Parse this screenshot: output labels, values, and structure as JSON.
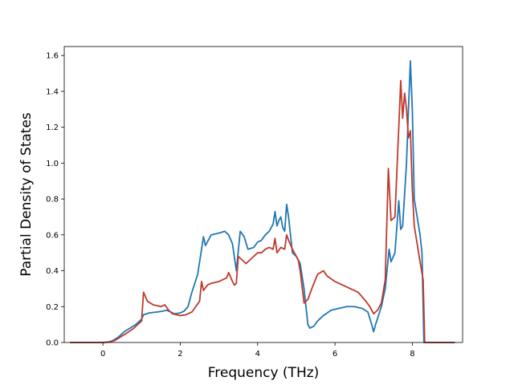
{
  "chart_data": {
    "type": "line",
    "title": "",
    "xlabel": "Frequency (THz)",
    "ylabel": "Partial Density of States",
    "xlim": [
      -1.0,
      9.3
    ],
    "ylim": [
      0.0,
      1.65
    ],
    "xticks": [
      0,
      2,
      4,
      6,
      8
    ],
    "yticks": [
      0.0,
      0.2,
      0.4,
      0.6,
      0.8,
      1.0,
      1.2,
      1.4,
      1.6
    ],
    "xtick_labels": [
      "0",
      "2",
      "4",
      "6",
      "8"
    ],
    "ytick_labels": [
      "0.0",
      "0.2",
      "0.4",
      "0.6",
      "0.8",
      "1.0",
      "1.2",
      "1.4",
      "1.6"
    ],
    "grid": false,
    "legend": "none",
    "series": [
      {
        "color": "#1f77b4",
        "points": [
          [
            -0.85,
            0.0
          ],
          [
            0.0,
            0.0
          ],
          [
            0.15,
            0.003
          ],
          [
            0.25,
            0.01
          ],
          [
            0.4,
            0.03
          ],
          [
            0.55,
            0.06
          ],
          [
            0.7,
            0.08
          ],
          [
            0.85,
            0.1
          ],
          [
            1.0,
            0.13
          ],
          [
            1.05,
            0.155
          ],
          [
            1.2,
            0.165
          ],
          [
            1.4,
            0.17
          ],
          [
            1.55,
            0.175
          ],
          [
            1.65,
            0.18
          ],
          [
            1.75,
            0.17
          ],
          [
            1.85,
            0.16
          ],
          [
            2.0,
            0.165
          ],
          [
            2.1,
            0.175
          ],
          [
            2.2,
            0.2
          ],
          [
            2.3,
            0.28
          ],
          [
            2.45,
            0.38
          ],
          [
            2.6,
            0.59
          ],
          [
            2.65,
            0.54
          ],
          [
            2.8,
            0.6
          ],
          [
            3.0,
            0.61
          ],
          [
            3.15,
            0.62
          ],
          [
            3.25,
            0.6
          ],
          [
            3.35,
            0.55
          ],
          [
            3.45,
            0.4
          ],
          [
            3.55,
            0.62
          ],
          [
            3.65,
            0.59
          ],
          [
            3.75,
            0.52
          ],
          [
            3.9,
            0.53
          ],
          [
            4.0,
            0.56
          ],
          [
            4.1,
            0.57
          ],
          [
            4.2,
            0.6
          ],
          [
            4.3,
            0.62
          ],
          [
            4.4,
            0.66
          ],
          [
            4.45,
            0.73
          ],
          [
            4.5,
            0.65
          ],
          [
            4.55,
            0.68
          ],
          [
            4.6,
            0.7
          ],
          [
            4.65,
            0.64
          ],
          [
            4.7,
            0.62
          ],
          [
            4.75,
            0.77
          ],
          [
            4.8,
            0.7
          ],
          [
            4.9,
            0.5
          ],
          [
            5.0,
            0.48
          ],
          [
            5.1,
            0.44
          ],
          [
            5.2,
            0.3
          ],
          [
            5.3,
            0.1
          ],
          [
            5.35,
            0.08
          ],
          [
            5.45,
            0.09
          ],
          [
            5.55,
            0.12
          ],
          [
            5.7,
            0.15
          ],
          [
            5.9,
            0.18
          ],
          [
            6.1,
            0.19
          ],
          [
            6.3,
            0.2
          ],
          [
            6.5,
            0.2
          ],
          [
            6.7,
            0.19
          ],
          [
            6.85,
            0.17
          ],
          [
            6.95,
            0.1
          ],
          [
            7.0,
            0.06
          ],
          [
            7.05,
            0.1
          ],
          [
            7.2,
            0.2
          ],
          [
            7.3,
            0.3
          ],
          [
            7.4,
            0.52
          ],
          [
            7.45,
            0.45
          ],
          [
            7.55,
            0.5
          ],
          [
            7.65,
            0.79
          ],
          [
            7.7,
            0.63
          ],
          [
            7.75,
            0.65
          ],
          [
            7.85,
            1.0
          ],
          [
            7.9,
            1.3
          ],
          [
            7.95,
            1.57
          ],
          [
            8.0,
            1.3
          ],
          [
            8.05,
            0.8
          ],
          [
            8.2,
            0.6
          ],
          [
            8.25,
            0.5
          ],
          [
            8.3,
            0.0
          ],
          [
            9.1,
            0.0
          ]
        ]
      },
      {
        "color": "#c0392b",
        "points": [
          [
            -0.85,
            0.0
          ],
          [
            0.0,
            0.0
          ],
          [
            0.15,
            0.002
          ],
          [
            0.3,
            0.01
          ],
          [
            0.45,
            0.03
          ],
          [
            0.6,
            0.05
          ],
          [
            0.8,
            0.08
          ],
          [
            0.95,
            0.11
          ],
          [
            1.0,
            0.12
          ],
          [
            1.05,
            0.28
          ],
          [
            1.15,
            0.23
          ],
          [
            1.3,
            0.21
          ],
          [
            1.5,
            0.2
          ],
          [
            1.6,
            0.21
          ],
          [
            1.7,
            0.18
          ],
          [
            1.8,
            0.16
          ],
          [
            2.0,
            0.15
          ],
          [
            2.15,
            0.155
          ],
          [
            2.3,
            0.17
          ],
          [
            2.4,
            0.2
          ],
          [
            2.5,
            0.23
          ],
          [
            2.55,
            0.34
          ],
          [
            2.6,
            0.29
          ],
          [
            2.7,
            0.32
          ],
          [
            2.8,
            0.33
          ],
          [
            3.0,
            0.34
          ],
          [
            3.1,
            0.35
          ],
          [
            3.2,
            0.36
          ],
          [
            3.25,
            0.39
          ],
          [
            3.35,
            0.34
          ],
          [
            3.4,
            0.32
          ],
          [
            3.45,
            0.33
          ],
          [
            3.5,
            0.48
          ],
          [
            3.6,
            0.46
          ],
          [
            3.7,
            0.44
          ],
          [
            3.85,
            0.47
          ],
          [
            4.0,
            0.5
          ],
          [
            4.1,
            0.5
          ],
          [
            4.2,
            0.52
          ],
          [
            4.3,
            0.53
          ],
          [
            4.4,
            0.52
          ],
          [
            4.45,
            0.58
          ],
          [
            4.5,
            0.5
          ],
          [
            4.6,
            0.53
          ],
          [
            4.7,
            0.52
          ],
          [
            4.75,
            0.6
          ],
          [
            4.8,
            0.57
          ],
          [
            4.9,
            0.52
          ],
          [
            5.0,
            0.48
          ],
          [
            5.05,
            0.46
          ],
          [
            5.1,
            0.4
          ],
          [
            5.2,
            0.22
          ],
          [
            5.3,
            0.24
          ],
          [
            5.4,
            0.3
          ],
          [
            5.55,
            0.38
          ],
          [
            5.7,
            0.4
          ],
          [
            5.8,
            0.37
          ],
          [
            6.0,
            0.34
          ],
          [
            6.3,
            0.31
          ],
          [
            6.6,
            0.28
          ],
          [
            6.8,
            0.23
          ],
          [
            6.9,
            0.2
          ],
          [
            7.0,
            0.16
          ],
          [
            7.1,
            0.18
          ],
          [
            7.2,
            0.22
          ],
          [
            7.3,
            0.35
          ],
          [
            7.38,
            0.97
          ],
          [
            7.45,
            0.68
          ],
          [
            7.55,
            0.7
          ],
          [
            7.65,
            1.2
          ],
          [
            7.7,
            1.46
          ],
          [
            7.75,
            1.25
          ],
          [
            7.8,
            1.39
          ],
          [
            7.85,
            1.3
          ],
          [
            7.9,
            1.14
          ],
          [
            7.95,
            1.18
          ],
          [
            8.0,
            0.85
          ],
          [
            8.05,
            0.65
          ],
          [
            8.2,
            0.45
          ],
          [
            8.28,
            0.35
          ],
          [
            8.32,
            0.0
          ],
          [
            9.1,
            0.0
          ]
        ]
      }
    ]
  }
}
